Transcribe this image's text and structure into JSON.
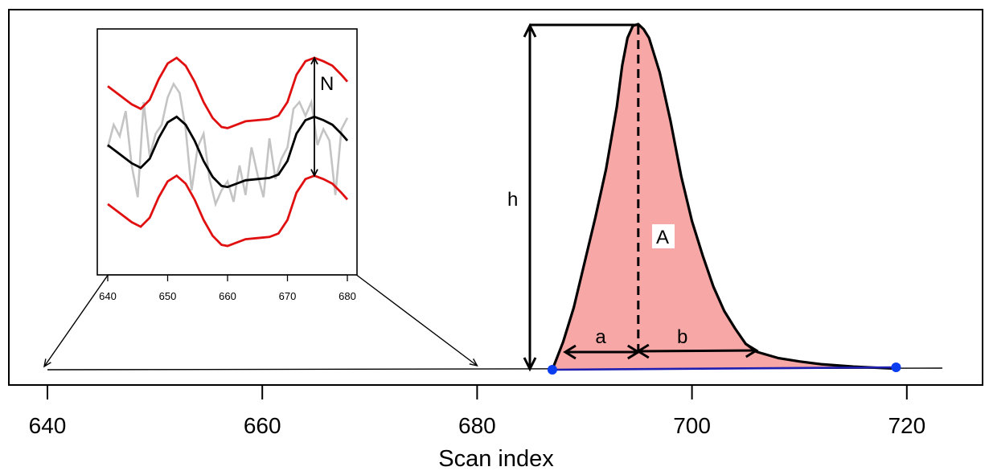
{
  "main": {
    "xlabel": "Scan index",
    "xlim": [
      639.6,
      725.4
    ],
    "xticks": [
      640,
      660,
      680,
      700,
      720
    ],
    "colors": {
      "peak_fill": "#f7a8a6",
      "baseline": "#1f1fb0",
      "endpoint": "#0a3cf0",
      "frame": "#000000"
    },
    "peak_profile": [
      [
        687,
        0
      ],
      [
        687.5,
        0.04
      ],
      [
        688,
        0.08
      ],
      [
        689,
        0.18
      ],
      [
        690,
        0.31
      ],
      [
        691,
        0.44
      ],
      [
        692,
        0.58
      ],
      [
        693,
        0.76
      ],
      [
        693.5,
        0.88
      ],
      [
        694,
        0.96
      ],
      [
        694.5,
        0.995
      ],
      [
        695,
        1.0
      ],
      [
        695.5,
        0.985
      ],
      [
        696,
        0.96
      ],
      [
        697,
        0.86
      ],
      [
        698,
        0.72
      ],
      [
        699,
        0.56
      ],
      [
        700,
        0.43
      ],
      [
        701,
        0.33
      ],
      [
        702,
        0.24
      ],
      [
        703,
        0.17
      ],
      [
        704,
        0.12
      ],
      [
        705,
        0.075
      ],
      [
        706,
        0.052
      ],
      [
        708,
        0.034
      ],
      [
        710,
        0.024
      ],
      [
        712,
        0.016
      ],
      [
        715,
        0.009
      ],
      [
        719,
        0.003
      ]
    ],
    "peak_start": 687,
    "peak_apex": 695,
    "peak_end": 719,
    "half_width_level": 0.05,
    "width_a_end": 688.2,
    "width_b_end": 706,
    "labels": {
      "h": "h",
      "A": "A",
      "a": "a",
      "b": "b"
    }
  },
  "inset": {
    "xticks": [
      640,
      650,
      660,
      670,
      680
    ],
    "xlim": [
      639.2,
      680.8
    ],
    "ylim": [
      0,
      1
    ],
    "zoom_from": 640,
    "zoom_to": 680,
    "noise_label": "N",
    "colors": {
      "raw": "#c4c4c4",
      "smooth": "#000000",
      "band": "#e01010"
    },
    "raw": [
      [
        640,
        0.52
      ],
      [
        641,
        0.62
      ],
      [
        642,
        0.57
      ],
      [
        643,
        0.68
      ],
      [
        644,
        0.44
      ],
      [
        645,
        0.3
      ],
      [
        646,
        0.72
      ],
      [
        647,
        0.48
      ],
      [
        648,
        0.58
      ],
      [
        649,
        0.62
      ],
      [
        650,
        0.74
      ],
      [
        651,
        0.8
      ],
      [
        652,
        0.76
      ],
      [
        653,
        0.6
      ],
      [
        654,
        0.33
      ],
      [
        655,
        0.52
      ],
      [
        656,
        0.58
      ],
      [
        657,
        0.38
      ],
      [
        658,
        0.27
      ],
      [
        659,
        0.33
      ],
      [
        660,
        0.37
      ],
      [
        661,
        0.28
      ],
      [
        662,
        0.44
      ],
      [
        663,
        0.31
      ],
      [
        664,
        0.52
      ],
      [
        665,
        0.4
      ],
      [
        666,
        0.3
      ],
      [
        667,
        0.56
      ],
      [
        668,
        0.38
      ],
      [
        669,
        0.47
      ],
      [
        670,
        0.52
      ],
      [
        671,
        0.69
      ],
      [
        672,
        0.72
      ],
      [
        673,
        0.66
      ],
      [
        674,
        0.72
      ],
      [
        675,
        0.53
      ],
      [
        676,
        0.6
      ],
      [
        677,
        0.55
      ],
      [
        678,
        0.31
      ],
      [
        679,
        0.6
      ],
      [
        680,
        0.65
      ]
    ],
    "smooth": [
      [
        640,
        0.53
      ],
      [
        642,
        0.49
      ],
      [
        644,
        0.45
      ],
      [
        645.5,
        0.43
      ],
      [
        647,
        0.47
      ],
      [
        648.5,
        0.56
      ],
      [
        650,
        0.63
      ],
      [
        651.5,
        0.655
      ],
      [
        653,
        0.62
      ],
      [
        654.5,
        0.55
      ],
      [
        656,
        0.46
      ],
      [
        657.5,
        0.39
      ],
      [
        659,
        0.35
      ],
      [
        660,
        0.345
      ],
      [
        661.5,
        0.36
      ],
      [
        663,
        0.375
      ],
      [
        665,
        0.38
      ],
      [
        667,
        0.385
      ],
      [
        668.5,
        0.4
      ],
      [
        670,
        0.46
      ],
      [
        671.5,
        0.58
      ],
      [
        673,
        0.64
      ],
      [
        674.5,
        0.655
      ],
      [
        676,
        0.64
      ],
      [
        677.5,
        0.62
      ],
      [
        679,
        0.58
      ],
      [
        680,
        0.55
      ]
    ],
    "band_offset": 0.26
  }
}
